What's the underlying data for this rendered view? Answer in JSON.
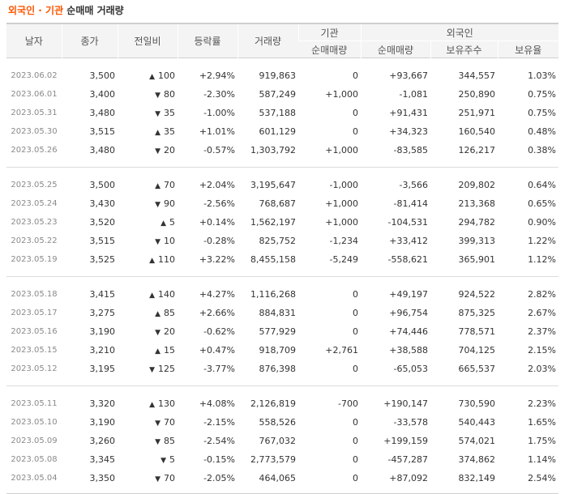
{
  "header": {
    "title_highlight": "외국인 · 기관",
    "title_rest": " 순매매 거래량"
  },
  "columns": {
    "date": "날자",
    "close": "종가",
    "change": "전일비",
    "rate": "등락률",
    "volume": "거래량",
    "institution": "기관",
    "inst_net": "순매매량",
    "foreign": "외국인",
    "for_net": "순매매량",
    "for_hold": "보유주수",
    "for_ratio": "보유율"
  },
  "colors": {
    "up": "#d60000",
    "down": "#1155cc",
    "title_accent": "#ff5500"
  },
  "groups": [
    [
      {
        "date": "2023.06.02",
        "close": "3,500",
        "dir": "up",
        "change": "100",
        "rate": "+2.94%",
        "volume": "919,863",
        "inst_net": "0",
        "for_net": "+93,667",
        "for_hold": "344,557",
        "for_ratio": "1.03%"
      },
      {
        "date": "2023.06.01",
        "close": "3,400",
        "dir": "down",
        "change": "80",
        "rate": "-2.30%",
        "volume": "587,249",
        "inst_net": "+1,000",
        "for_net": "-1,081",
        "for_hold": "250,890",
        "for_ratio": "0.75%"
      },
      {
        "date": "2023.05.31",
        "close": "3,480",
        "dir": "down",
        "change": "35",
        "rate": "-1.00%",
        "volume": "537,188",
        "inst_net": "0",
        "for_net": "+91,431",
        "for_hold": "251,971",
        "for_ratio": "0.75%"
      },
      {
        "date": "2023.05.30",
        "close": "3,515",
        "dir": "up",
        "change": "35",
        "rate": "+1.01%",
        "volume": "601,129",
        "inst_net": "0",
        "for_net": "+34,323",
        "for_hold": "160,540",
        "for_ratio": "0.48%"
      },
      {
        "date": "2023.05.26",
        "close": "3,480",
        "dir": "down",
        "change": "20",
        "rate": "-0.57%",
        "volume": "1,303,792",
        "inst_net": "+1,000",
        "for_net": "-83,585",
        "for_hold": "126,217",
        "for_ratio": "0.38%"
      }
    ],
    [
      {
        "date": "2023.05.25",
        "close": "3,500",
        "dir": "up",
        "change": "70",
        "rate": "+2.04%",
        "volume": "3,195,647",
        "inst_net": "-1,000",
        "for_net": "-3,566",
        "for_hold": "209,802",
        "for_ratio": "0.64%"
      },
      {
        "date": "2023.05.24",
        "close": "3,430",
        "dir": "down",
        "change": "90",
        "rate": "-2.56%",
        "volume": "768,687",
        "inst_net": "+1,000",
        "for_net": "-81,414",
        "for_hold": "213,368",
        "for_ratio": "0.65%"
      },
      {
        "date": "2023.05.23",
        "close": "3,520",
        "dir": "up",
        "change": "5",
        "rate": "+0.14%",
        "volume": "1,562,197",
        "inst_net": "+1,000",
        "for_net": "-104,531",
        "for_hold": "294,782",
        "for_ratio": "0.90%"
      },
      {
        "date": "2023.05.22",
        "close": "3,515",
        "dir": "down",
        "change": "10",
        "rate": "-0.28%",
        "volume": "825,752",
        "inst_net": "-1,234",
        "for_net": "+33,412",
        "for_hold": "399,313",
        "for_ratio": "1.22%"
      },
      {
        "date": "2023.05.19",
        "close": "3,525",
        "dir": "up",
        "change": "110",
        "rate": "+3.22%",
        "volume": "8,455,158",
        "inst_net": "-5,249",
        "for_net": "-558,621",
        "for_hold": "365,901",
        "for_ratio": "1.12%"
      }
    ],
    [
      {
        "date": "2023.05.18",
        "close": "3,415",
        "dir": "up",
        "change": "140",
        "rate": "+4.27%",
        "volume": "1,116,268",
        "inst_net": "0",
        "for_net": "+49,197",
        "for_hold": "924,522",
        "for_ratio": "2.82%"
      },
      {
        "date": "2023.05.17",
        "close": "3,275",
        "dir": "up",
        "change": "85",
        "rate": "+2.66%",
        "volume": "884,831",
        "inst_net": "0",
        "for_net": "+96,754",
        "for_hold": "875,325",
        "for_ratio": "2.67%"
      },
      {
        "date": "2023.05.16",
        "close": "3,190",
        "dir": "down",
        "change": "20",
        "rate": "-0.62%",
        "volume": "577,929",
        "inst_net": "0",
        "for_net": "+74,446",
        "for_hold": "778,571",
        "for_ratio": "2.37%"
      },
      {
        "date": "2023.05.15",
        "close": "3,210",
        "dir": "up",
        "change": "15",
        "rate": "+0.47%",
        "volume": "918,709",
        "inst_net": "+2,761",
        "for_net": "+38,588",
        "for_hold": "704,125",
        "for_ratio": "2.15%"
      },
      {
        "date": "2023.05.12",
        "close": "3,195",
        "dir": "down",
        "change": "125",
        "rate": "-3.77%",
        "volume": "876,398",
        "inst_net": "0",
        "for_net": "-65,053",
        "for_hold": "665,537",
        "for_ratio": "2.03%"
      }
    ],
    [
      {
        "date": "2023.05.11",
        "close": "3,320",
        "dir": "up",
        "change": "130",
        "rate": "+4.08%",
        "volume": "2,126,819",
        "inst_net": "-700",
        "for_net": "+190,147",
        "for_hold": "730,590",
        "for_ratio": "2.23%"
      },
      {
        "date": "2023.05.10",
        "close": "3,190",
        "dir": "down",
        "change": "70",
        "rate": "-2.15%",
        "volume": "558,526",
        "inst_net": "0",
        "for_net": "-33,578",
        "for_hold": "540,443",
        "for_ratio": "1.65%"
      },
      {
        "date": "2023.05.09",
        "close": "3,260",
        "dir": "down",
        "change": "85",
        "rate": "-2.54%",
        "volume": "767,032",
        "inst_net": "0",
        "for_net": "+199,159",
        "for_hold": "574,021",
        "for_ratio": "1.75%"
      },
      {
        "date": "2023.05.08",
        "close": "3,345",
        "dir": "down",
        "change": "5",
        "rate": "-0.15%",
        "volume": "2,773,579",
        "inst_net": "0",
        "for_net": "-457,287",
        "for_hold": "374,862",
        "for_ratio": "1.14%"
      },
      {
        "date": "2023.05.04",
        "close": "3,350",
        "dir": "down",
        "change": "70",
        "rate": "-2.05%",
        "volume": "464,065",
        "inst_net": "0",
        "for_net": "+87,092",
        "for_hold": "832,149",
        "for_ratio": "2.54%"
      }
    ]
  ]
}
